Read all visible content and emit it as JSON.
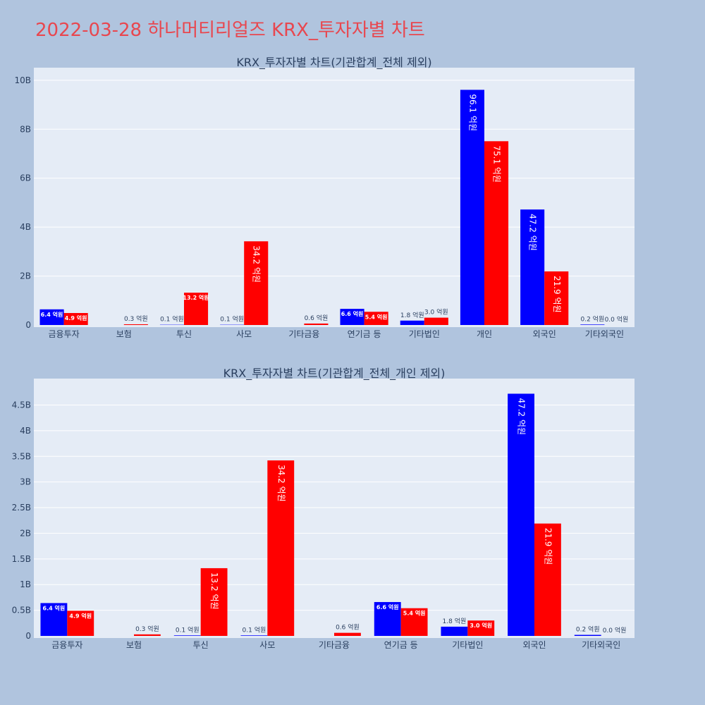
{
  "page": {
    "title": "2022-03-28 하나머티리얼즈 KRX_투자자별 차트"
  },
  "colors": {
    "page_bg": "#b0c4de",
    "plot_bg": "#e5ecf6",
    "title": "#e8474f",
    "buy": "#0000ff",
    "sell": "#ff0000",
    "text": "#2a3f5f",
    "grid": "#ffffff"
  },
  "chart_data": [
    {
      "type": "bar",
      "title": "KRX_투자자별 차트(기관합계_전체 제외)",
      "categories": [
        "금융투자",
        "보험",
        "투신",
        "사모",
        "기타금융",
        "연기금 등",
        "기타법인",
        "개인",
        "외국인",
        "기타외국인"
      ],
      "series": [
        {
          "values": [
            0.64,
            0,
            0.01,
            0.01,
            0,
            0.66,
            0.18,
            9.61,
            4.72,
            0.02
          ]
        },
        {
          "values": [
            0.49,
            0.03,
            1.32,
            3.42,
            0.06,
            0.54,
            0.3,
            7.51,
            2.19,
            0.0
          ]
        }
      ],
      "data_labels": [
        [
          "6.4 억원",
          "",
          "0.1 억원",
          "0.1 억원",
          "",
          "6.6 억원",
          "1.8 억원",
          "96.1 억원",
          "47.2 억원",
          "0.2 억원"
        ],
        [
          "4.9 억원",
          "0.3 억원",
          "13.2 억원",
          "34.2 억원",
          "0.6 억원",
          "5.4 억원",
          "3.0 억원",
          "75.1 억원",
          "21.9 억원",
          "0.0 억원"
        ]
      ],
      "ylim": [
        0,
        10.4
      ],
      "y_ticks": [
        0,
        2,
        4,
        6,
        8,
        10
      ],
      "y_tick_labels": [
        "0",
        "2B",
        "4B",
        "6B",
        "8B",
        "10B"
      ],
      "grid": true
    },
    {
      "type": "bar",
      "title": "KRX_투자자별 차트(기관합계_전체_개인 제외)",
      "categories": [
        "금융투자",
        "보험",
        "투신",
        "사모",
        "기타금융",
        "연기금 등",
        "기타법인",
        "외국인",
        "기타외국인"
      ],
      "series": [
        {
          "values": [
            0.64,
            0,
            0.01,
            0.01,
            0,
            0.66,
            0.18,
            4.72,
            0.02
          ]
        },
        {
          "values": [
            0.49,
            0.03,
            1.32,
            3.42,
            0.06,
            0.54,
            0.3,
            2.19,
            0.0
          ]
        }
      ],
      "data_labels": [
        [
          "6.4 억원",
          "",
          "0.1 억원",
          "0.1 억원",
          "",
          "6.6 억원",
          "1.8 억원",
          "47.2 억원",
          "0.2 억원"
        ],
        [
          "4.9 억원",
          "0.3 억원",
          "13.2 억원",
          "34.2 억원",
          "0.6 억원",
          "5.4 억원",
          "3.0 억원",
          "21.9 억원",
          "0.0 억원"
        ]
      ],
      "ylim": [
        0,
        4.96
      ],
      "y_ticks": [
        0,
        0.5,
        1,
        1.5,
        2,
        2.5,
        3,
        3.5,
        4,
        4.5
      ],
      "y_tick_labels": [
        "0",
        "0.5B",
        "1B",
        "1.5B",
        "2B",
        "2.5B",
        "3B",
        "3.5B",
        "4B",
        "4.5B"
      ],
      "grid": true
    }
  ]
}
